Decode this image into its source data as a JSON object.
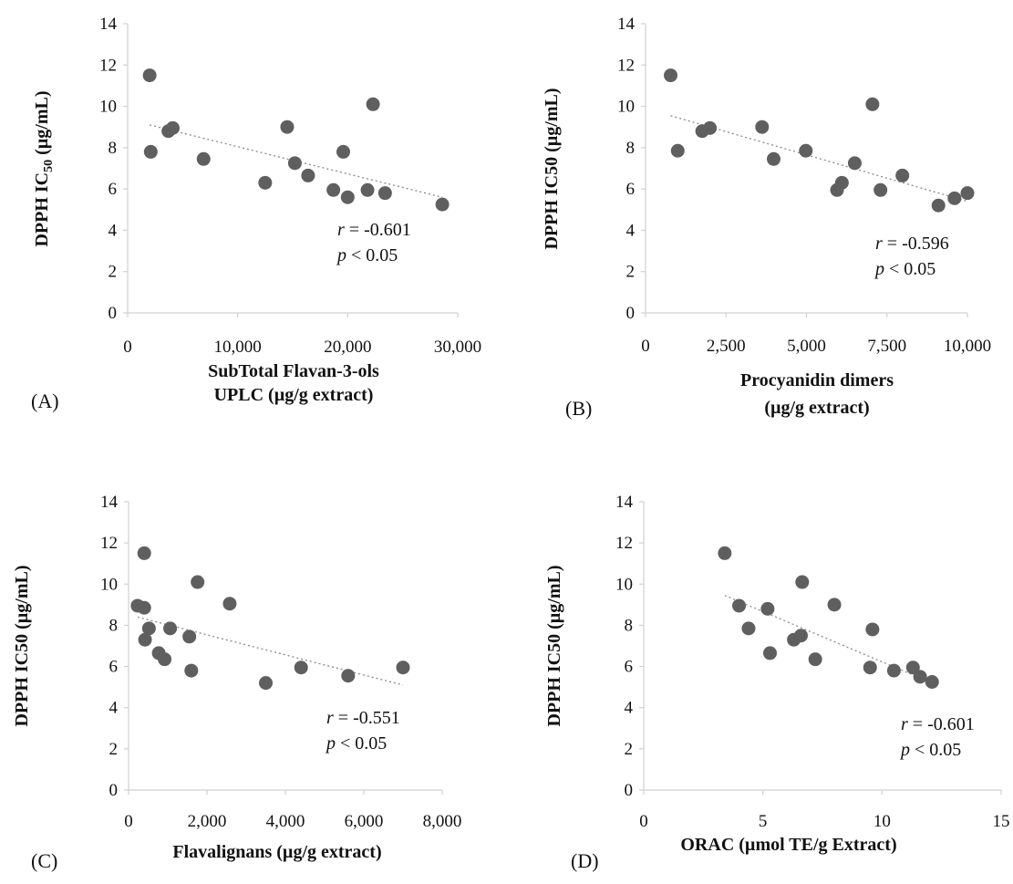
{
  "chart_data": [
    {
      "panel": "(A)",
      "type": "scatter",
      "ylabel": "DPPH IC",
      "ylabel_sub": "50",
      "ylabel_tail": " (µg/mL)",
      "xlabel": [
        "SubTotal Flavan-3-ols",
        "UPLC (µg/g extract)"
      ],
      "xlim": [
        0,
        30000
      ],
      "ylim": [
        0,
        14
      ],
      "xticks": [
        0,
        10000,
        20000,
        30000
      ],
      "xtick_labels": [
        "0",
        "10,000",
        "20,000",
        "30,000"
      ],
      "yticks": [
        0,
        2,
        4,
        6,
        8,
        10,
        12,
        14
      ],
      "points": [
        {
          "x": 2000,
          "y": 11.5
        },
        {
          "x": 2100,
          "y": 7.8
        },
        {
          "x": 3700,
          "y": 8.8
        },
        {
          "x": 4100,
          "y": 8.95
        },
        {
          "x": 6900,
          "y": 7.45
        },
        {
          "x": 12500,
          "y": 6.3
        },
        {
          "x": 14500,
          "y": 9.0
        },
        {
          "x": 15200,
          "y": 7.25
        },
        {
          "x": 16400,
          "y": 6.65
        },
        {
          "x": 18700,
          "y": 5.95
        },
        {
          "x": 19600,
          "y": 7.8
        },
        {
          "x": 20000,
          "y": 5.6
        },
        {
          "x": 21800,
          "y": 5.95
        },
        {
          "x": 22300,
          "y": 10.1
        },
        {
          "x": 23400,
          "y": 5.8
        },
        {
          "x": 28600,
          "y": 5.25
        }
      ],
      "trendline": {
        "x": [
          2000,
          28600
        ],
        "y": [
          9.1,
          5.6
        ]
      },
      "stats": {
        "r_label": "r",
        "r_value": " = -0.601",
        "p_label": "p",
        "p_value": " < 0.05"
      }
    },
    {
      "panel": "(B)",
      "type": "scatter",
      "ylabel": "DPPH IC50 (µg/mL)",
      "xlabel": [
        "Procyanidin dimers",
        "(µg/g extract)"
      ],
      "xlim": [
        0,
        10000
      ],
      "ylim": [
        0,
        14
      ],
      "xticks": [
        0,
        2500,
        5000,
        7500,
        10000
      ],
      "xtick_labels": [
        "0",
        "2,500",
        "5,000",
        "7,500",
        "10,000"
      ],
      "yticks": [
        0,
        2,
        4,
        6,
        8,
        10,
        12,
        14
      ],
      "points": [
        {
          "x": 780,
          "y": 11.5
        },
        {
          "x": 1000,
          "y": 7.85
        },
        {
          "x": 1760,
          "y": 8.8
        },
        {
          "x": 2000,
          "y": 8.95
        },
        {
          "x": 3620,
          "y": 9.0
        },
        {
          "x": 3980,
          "y": 7.45
        },
        {
          "x": 4980,
          "y": 7.85
        },
        {
          "x": 5950,
          "y": 5.95
        },
        {
          "x": 6100,
          "y": 6.3
        },
        {
          "x": 6500,
          "y": 7.25
        },
        {
          "x": 7050,
          "y": 10.1
        },
        {
          "x": 7300,
          "y": 5.95
        },
        {
          "x": 7980,
          "y": 6.65
        },
        {
          "x": 9100,
          "y": 5.2
        },
        {
          "x": 9600,
          "y": 5.55
        },
        {
          "x": 10000,
          "y": 5.8
        }
      ],
      "trendline": {
        "x": [
          780,
          10000
        ],
        "y": [
          9.55,
          5.4
        ]
      },
      "stats": {
        "r_label": "r",
        "r_value": " = -0.596",
        "p_label": "p",
        "p_value": " < 0.05"
      }
    },
    {
      "panel": "(C)",
      "type": "scatter",
      "ylabel": "DPPH IC50 (µg/mL)",
      "xlabel": [
        "Flavalignans (µg/g extract)"
      ],
      "xlim": [
        0,
        8000
      ],
      "ylim": [
        0,
        14
      ],
      "xticks": [
        0,
        2000,
        4000,
        6000,
        8000
      ],
      "xtick_labels": [
        "0",
        "2,000",
        "4,000",
        "6,000",
        "8,000"
      ],
      "yticks": [
        0,
        2,
        4,
        6,
        8,
        10,
        12,
        14
      ],
      "points": [
        {
          "x": 230,
          "y": 8.95
        },
        {
          "x": 400,
          "y": 11.5
        },
        {
          "x": 400,
          "y": 8.85
        },
        {
          "x": 420,
          "y": 7.3
        },
        {
          "x": 520,
          "y": 7.85
        },
        {
          "x": 770,
          "y": 6.65
        },
        {
          "x": 920,
          "y": 6.35
        },
        {
          "x": 1060,
          "y": 7.85
        },
        {
          "x": 1550,
          "y": 7.45
        },
        {
          "x": 1600,
          "y": 5.8
        },
        {
          "x": 1760,
          "y": 10.1
        },
        {
          "x": 2580,
          "y": 9.05
        },
        {
          "x": 3500,
          "y": 5.2
        },
        {
          "x": 4400,
          "y": 5.95
        },
        {
          "x": 5600,
          "y": 5.55
        },
        {
          "x": 7000,
          "y": 5.95
        }
      ],
      "trendline": {
        "x": [
          230,
          7000
        ],
        "y": [
          8.4,
          5.1
        ]
      },
      "stats": {
        "r_label": "r",
        "r_value": " = -0.551",
        "p_label": "p",
        "p_value": " < 0.05"
      }
    },
    {
      "panel": "(D)",
      "type": "scatter",
      "ylabel": "DPPH IC50 (µg/mL)",
      "xlabel": [
        "ORAC (µmol TE/g Extract)"
      ],
      "xlim": [
        0,
        15
      ],
      "ylim": [
        0,
        14
      ],
      "xticks": [
        0,
        5,
        10,
        15
      ],
      "xtick_labels": [
        "0",
        "5",
        "10",
        "15"
      ],
      "yticks": [
        0,
        2,
        4,
        6,
        8,
        10,
        12,
        14
      ],
      "points": [
        {
          "x": 3.4,
          "y": 11.5
        },
        {
          "x": 4.0,
          "y": 8.95
        },
        {
          "x": 4.4,
          "y": 7.85
        },
        {
          "x": 5.2,
          "y": 8.8
        },
        {
          "x": 5.3,
          "y": 6.65
        },
        {
          "x": 6.3,
          "y": 7.3
        },
        {
          "x": 6.65,
          "y": 10.1
        },
        {
          "x": 6.6,
          "y": 7.5
        },
        {
          "x": 7.2,
          "y": 6.35
        },
        {
          "x": 8.0,
          "y": 9.0
        },
        {
          "x": 9.5,
          "y": 5.95
        },
        {
          "x": 9.6,
          "y": 7.8
        },
        {
          "x": 10.5,
          "y": 5.8
        },
        {
          "x": 11.3,
          "y": 5.95
        },
        {
          "x": 11.6,
          "y": 5.5
        },
        {
          "x": 12.1,
          "y": 5.25
        }
      ],
      "trendline": {
        "x": [
          3.4,
          12.1
        ],
        "y": [
          9.45,
          5.2
        ]
      },
      "stats": {
        "r_label": "r",
        "r_value": " = -0.601",
        "p_label": "p",
        "p_value": " < 0.05"
      }
    }
  ],
  "style": {
    "point_color": "#5f5f5f",
    "trend_color": "#8a8a8a",
    "axis_color": "#d0d0d0"
  }
}
